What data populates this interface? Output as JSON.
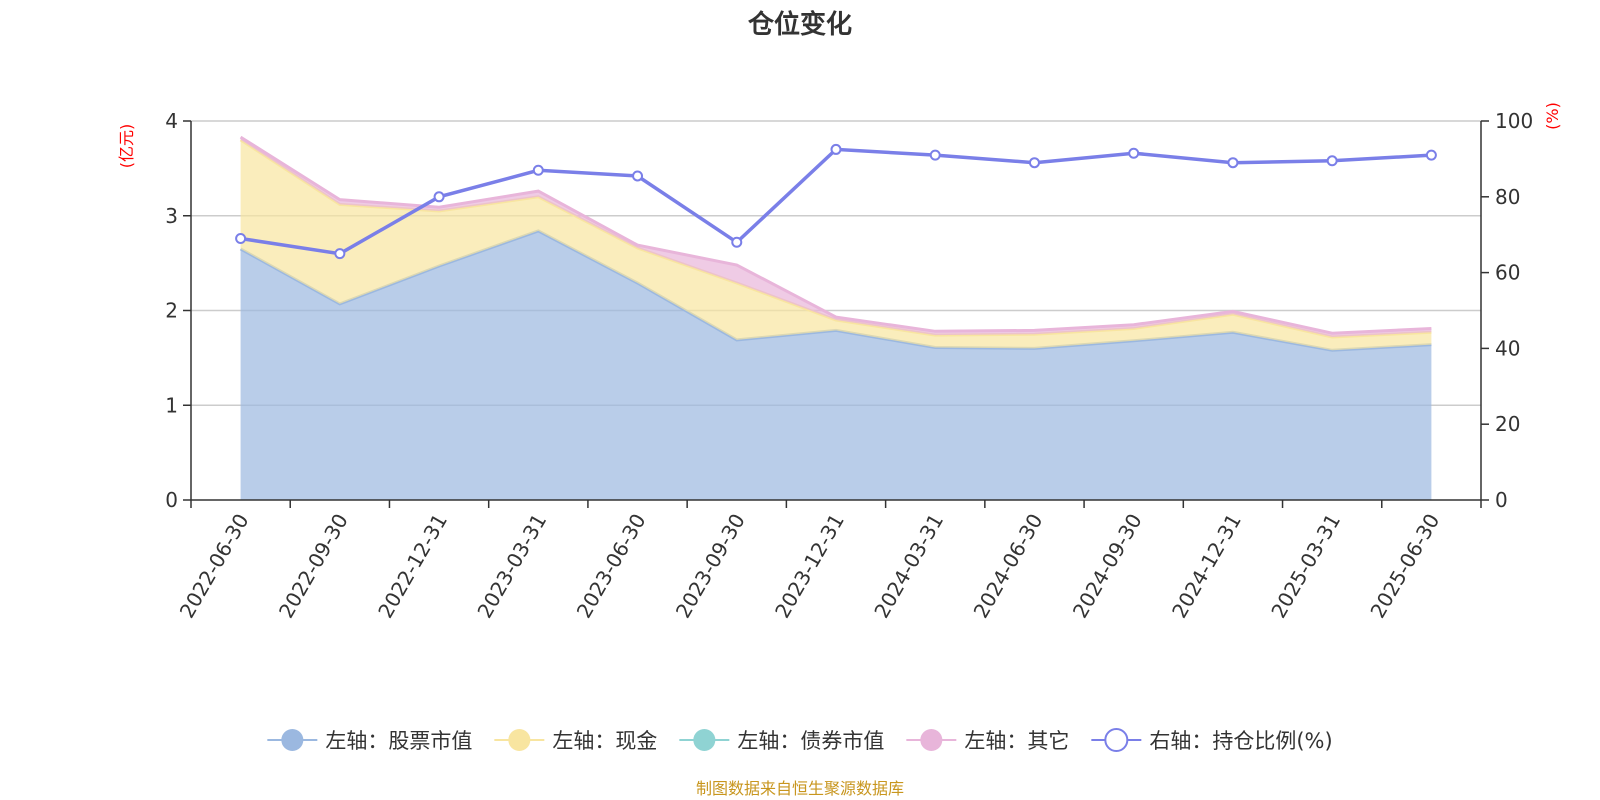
{
  "chart_data": {
    "type": "area",
    "title": "仓位变化",
    "left_unit": "(亿元)",
    "right_unit": "(%)",
    "categories": [
      "2022-06-30",
      "2022-09-30",
      "2022-12-31",
      "2023-03-31",
      "2023-06-30",
      "2023-09-30",
      "2023-12-31",
      "2024-03-31",
      "2024-06-30",
      "2024-09-30",
      "2024-12-31",
      "2025-03-31",
      "2025-06-30"
    ],
    "left_axis": {
      "min": 0,
      "max": 4,
      "ticks": [
        0,
        1,
        2,
        3,
        4
      ]
    },
    "right_axis": {
      "min": 0,
      "max": 100,
      "ticks": [
        0,
        20,
        40,
        60,
        80,
        100
      ]
    },
    "series": [
      {
        "name": "左轴：股票市值",
        "axis": "left",
        "kind": "stacked-area",
        "color": "#9bb8e0",
        "values": [
          2.65,
          2.07,
          2.47,
          2.84,
          2.29,
          1.69,
          1.79,
          1.61,
          1.6,
          1.68,
          1.77,
          1.58,
          1.64
        ]
      },
      {
        "name": "左轴：现金",
        "axis": "left",
        "kind": "stacked-area",
        "color": "#f8e5a0",
        "values": [
          1.15,
          1.05,
          0.58,
          0.36,
          0.37,
          0.6,
          0.11,
          0.13,
          0.15,
          0.13,
          0.19,
          0.14,
          0.13
        ]
      },
      {
        "name": "左轴：债券市值",
        "axis": "left",
        "kind": "stacked-area",
        "color": "#8fd3d3",
        "values": [
          0,
          0,
          0,
          0,
          0,
          0,
          0,
          0,
          0,
          0,
          0,
          0,
          0
        ]
      },
      {
        "name": "左轴：其它",
        "axis": "left",
        "kind": "stacked-area",
        "color": "#e8b5da",
        "values": [
          0.03,
          0.05,
          0.04,
          0.06,
          0.03,
          0.19,
          0.03,
          0.04,
          0.04,
          0.04,
          0.03,
          0.04,
          0.04
        ]
      },
      {
        "name": "右轴：持仓比例(%)",
        "axis": "right",
        "kind": "line",
        "color": "#7a7fe8",
        "values": [
          69.0,
          65.0,
          80.0,
          87.0,
          85.5,
          68.0,
          92.5,
          91.0,
          89.0,
          91.5,
          89.0,
          89.5,
          91.0
        ]
      }
    ],
    "grid": true,
    "legend_position": "bottom"
  },
  "source": "制图数据来自恒生聚源数据库"
}
